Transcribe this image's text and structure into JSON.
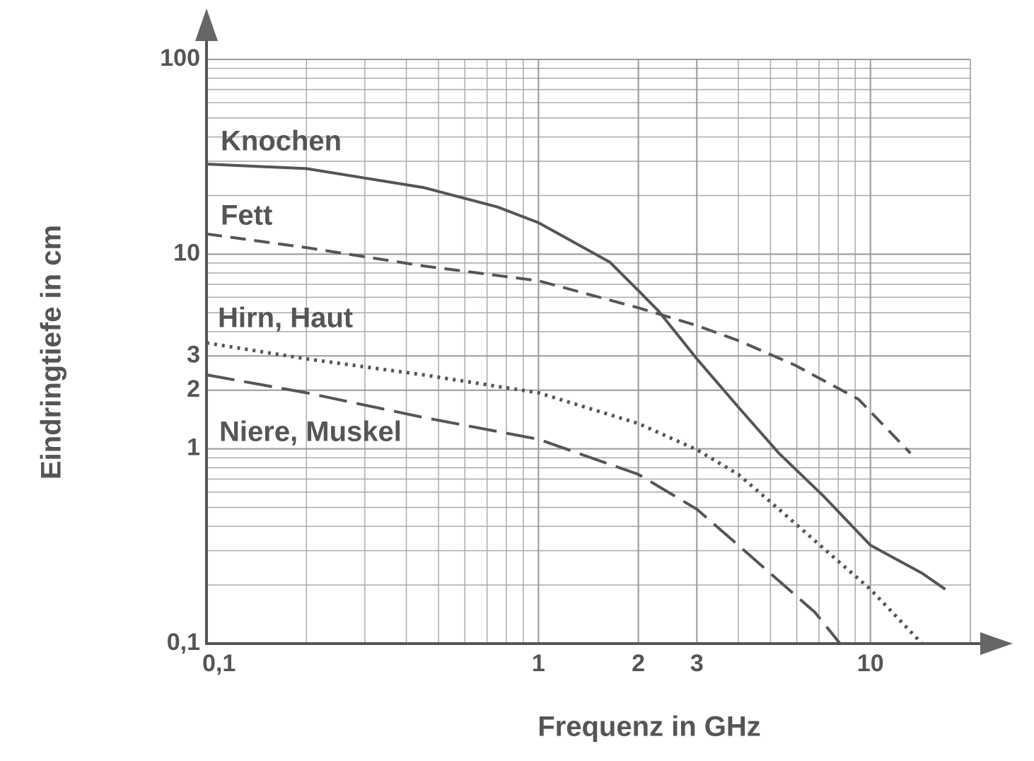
{
  "chart_data": {
    "type": "line",
    "x_label": "Frequenz in GHz",
    "y_label": "Eindringtiefe in cm",
    "xlog": true,
    "ylog": true,
    "grid": true,
    "minor_grid": true,
    "xlim": [
      0.1,
      20
    ],
    "ylim": [
      0.1,
      100
    ],
    "xticks": [
      {
        "value": 0.1,
        "label": "0,1"
      },
      1,
      2,
      3,
      10
    ],
    "yticks": [
      {
        "value": 0.1,
        "label": "0,1"
      },
      1,
      2,
      3,
      10,
      100
    ],
    "series": [
      {
        "name": "Knochen",
        "color": "#555555",
        "dash": "solid",
        "x": [
          0.1,
          0.2,
          0.45,
          0.75,
          1,
          1.64,
          2,
          2.3,
          3,
          4,
          5.3,
          7.2,
          10,
          14.3,
          16.8
        ],
        "values": [
          29,
          27.5,
          22,
          17.5,
          14.5,
          9.1,
          6.5,
          5.1,
          2.9,
          1.64,
          0.95,
          0.575,
          0.32,
          0.23,
          0.19
        ]
      },
      {
        "name": "Fett",
        "color": "#555555",
        "dash": "dashed",
        "x": [
          0.1,
          0.2,
          0.45,
          1,
          2,
          3,
          4,
          5.9,
          9.2,
          13.2
        ],
        "values": [
          12.7,
          10.8,
          8.7,
          7.3,
          5.3,
          4.3,
          3.6,
          2.7,
          1.8,
          0.95
        ]
      },
      {
        "name": "Hirn, Haut",
        "color": "#555555",
        "dash": "dotted",
        "x": [
          0.1,
          0.2,
          0.45,
          1,
          2,
          3,
          4,
          5.3,
          7.2,
          10,
          14.3
        ],
        "values": [
          3.5,
          2.9,
          2.4,
          1.94,
          1.35,
          0.99,
          0.74,
          0.49,
          0.31,
          0.19,
          0.1
        ]
      },
      {
        "name": "Niere, Muskel",
        "color": "#555555",
        "dash": "longdash",
        "x": [
          0.1,
          0.2,
          0.45,
          1,
          2,
          3,
          4,
          5.3,
          6.8,
          8.1
        ],
        "values": [
          2.4,
          1.94,
          1.45,
          1.12,
          0.74,
          0.49,
          0.32,
          0.21,
          0.145,
          0.1
        ]
      }
    ]
  }
}
